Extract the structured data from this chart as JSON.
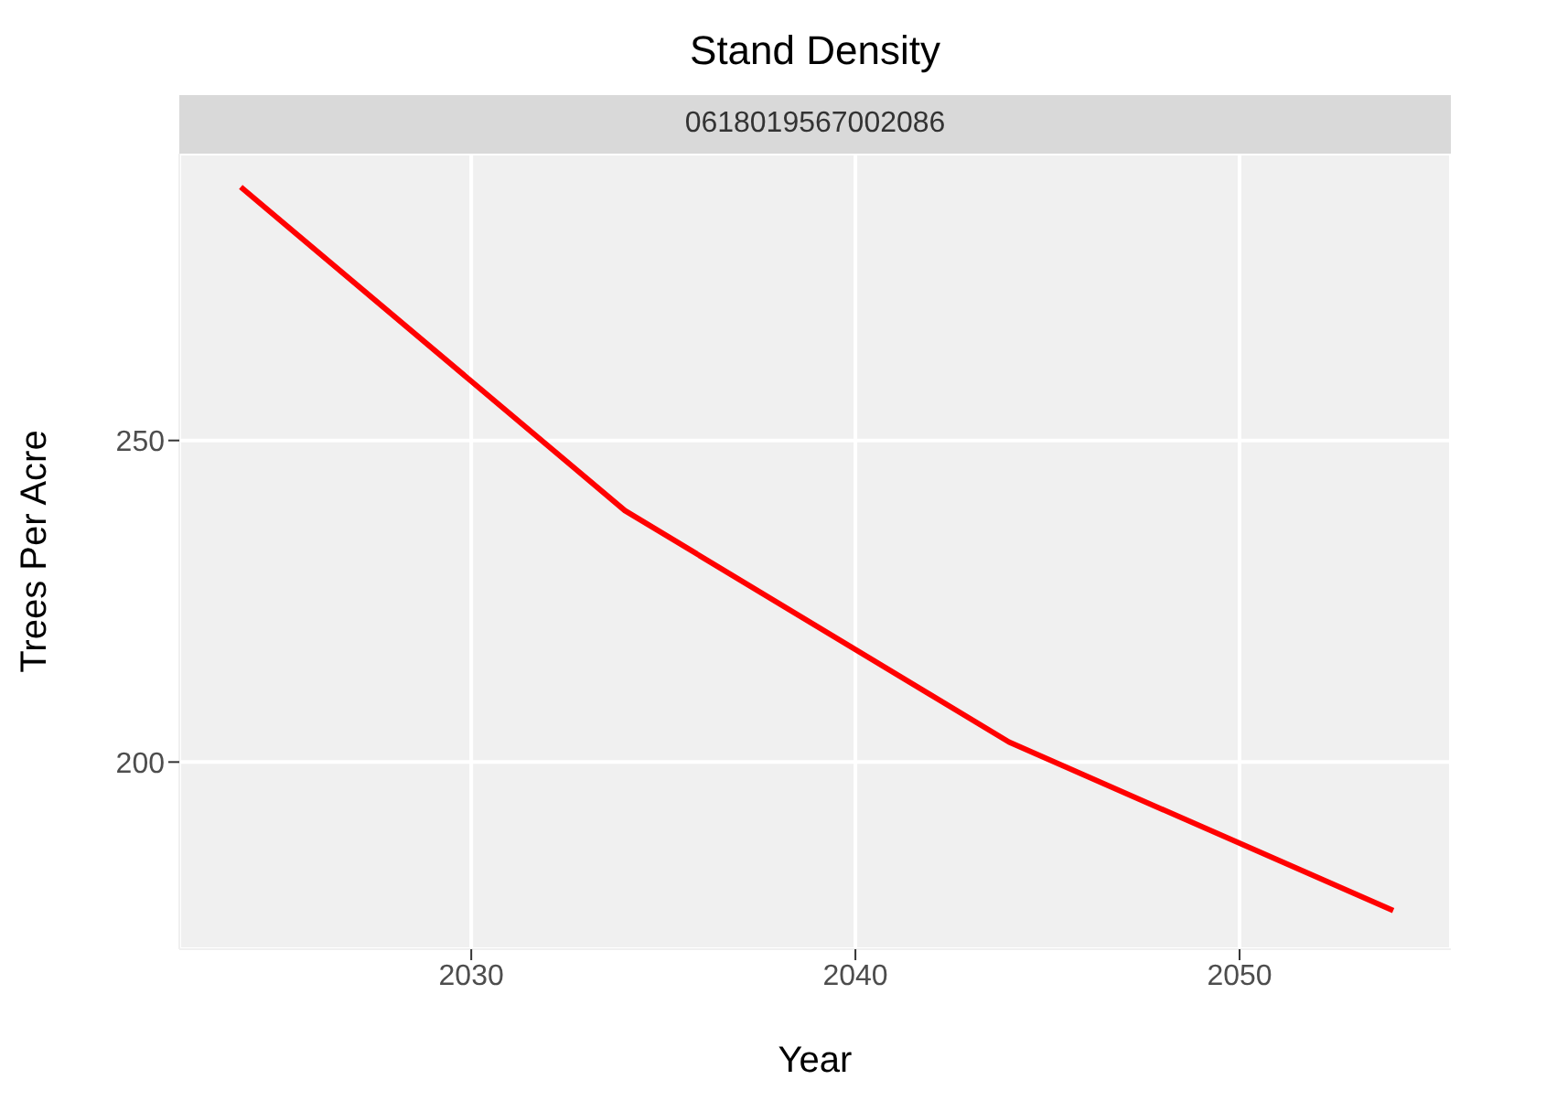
{
  "chart_data": {
    "type": "line",
    "title": "Stand Density",
    "subtitle": "0618019567002086",
    "xlabel": "Year",
    "ylabel": "Trees Per Acre",
    "x": [
      2024,
      2034,
      2044,
      2054
    ],
    "series": [
      {
        "color": "#ff0000",
        "values": [
          289.4,
          239.1,
          203.1,
          176.9
        ]
      }
    ],
    "xlim": [
      2022.4,
      2055.5
    ],
    "xticks": [
      2030,
      2040,
      2050
    ],
    "ylim": [
      170.9,
      294.6
    ],
    "yticks": [
      200,
      250
    ],
    "grid": true,
    "legend": false,
    "marker": "none",
    "line_style": "solid"
  }
}
